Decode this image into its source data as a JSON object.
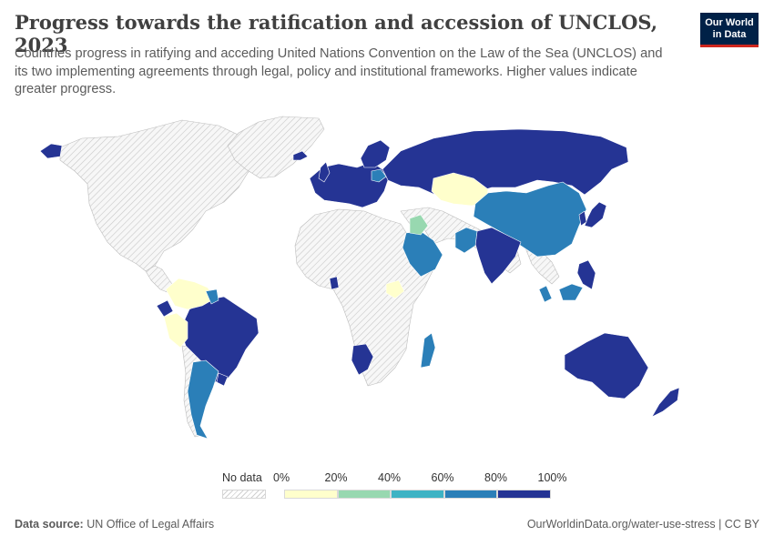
{
  "header": {
    "title": "Progress towards the ratification and accession of UNCLOS, 2023",
    "subtitle": "Countries progress in ratifying and acceding United Nations Convention on the Law of the Sea (UNCLOS) and its two implementing agreements through legal, policy and institutional frameworks. Higher values indicate greater progress."
  },
  "logo": {
    "line1": "Our World",
    "line2": "in Data"
  },
  "legend": {
    "nodata_label": "No data",
    "ticks": [
      "0%",
      "20%",
      "40%",
      "60%",
      "80%",
      "100%"
    ],
    "bins": [
      {
        "from": 0,
        "to": 20,
        "color": "#ffffcc"
      },
      {
        "from": 20,
        "to": 40,
        "color": "#98d8b0"
      },
      {
        "from": 40,
        "to": 60,
        "color": "#3eb3c4"
      },
      {
        "from": 60,
        "to": 80,
        "color": "#2b7fb8"
      },
      {
        "from": 80,
        "to": 100,
        "color": "#253494"
      }
    ]
  },
  "colors": {
    "c100": "#253494",
    "c80": "#2b7fb8",
    "c60": "#3eb3c4",
    "c40": "#98d8b0",
    "c20": "#ffffcc",
    "nodata": "#eeeeee",
    "border": "#ffffff"
  },
  "footer": {
    "source_label": "Data source:",
    "source_text": "UN Office of Legal Affairs",
    "url_text": "OurWorldinData.org/water-use-stress | CC BY"
  }
}
